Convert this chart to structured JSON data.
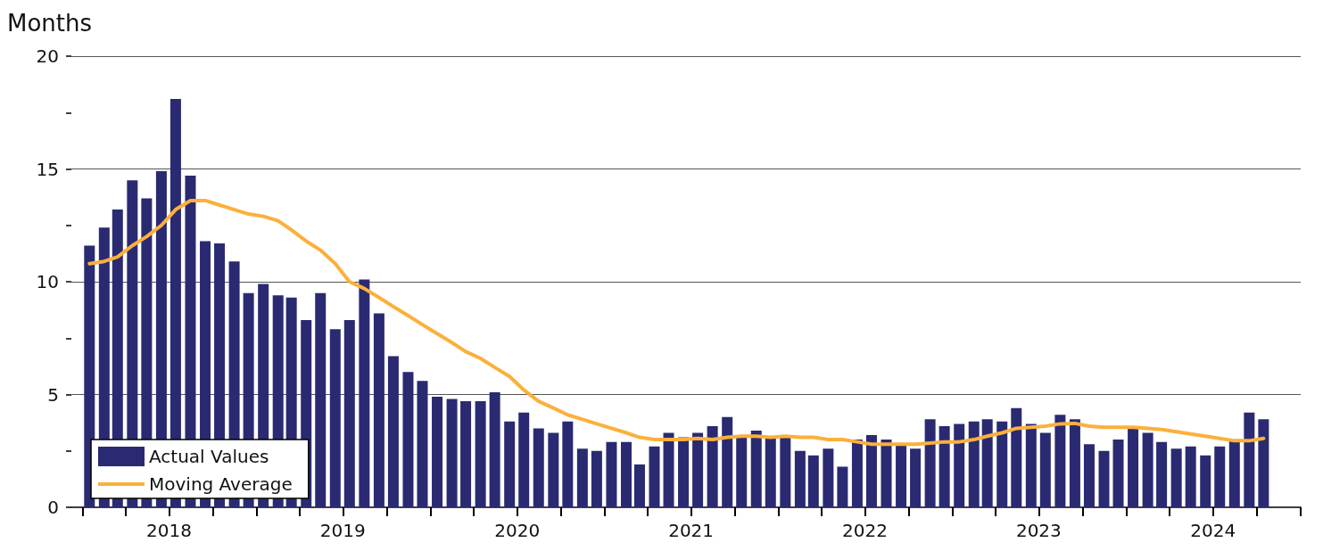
{
  "chart_data": {
    "type": "bar",
    "ylabel": "Months",
    "legend": "bottom left",
    "grid": "y",
    "marker": "none",
    "x": [
      "2018-01-15",
      "2018-02-15",
      "2018-03-15",
      "2018-04-15",
      "2018-05-15",
      "2018-06-15",
      "2018-07-15",
      "2018-08-15",
      "2018-09-15",
      "2018-10-15",
      "2018-11-15",
      "2018-12-15",
      "2019-01-15",
      "2019-02-15",
      "2019-03-15",
      "2019-04-15",
      "2019-05-15",
      "2019-06-15",
      "2019-07-15",
      "2019-08-15",
      "2019-09-15",
      "2019-10-15",
      "2019-11-15",
      "2019-12-15",
      "2020-01-15",
      "2020-02-15",
      "2020-03-15",
      "2020-04-15",
      "2020-05-15",
      "2020-06-15",
      "2020-07-15",
      "2020-08-15",
      "2020-09-15",
      "2020-10-15",
      "2020-11-15",
      "2020-12-15",
      "2021-01-15",
      "2021-02-15",
      "2021-03-15",
      "2021-04-15",
      "2021-05-15",
      "2021-06-15",
      "2021-07-15",
      "2021-08-15",
      "2021-09-15",
      "2021-10-15",
      "2021-11-15",
      "2021-12-15",
      "2022-01-15",
      "2022-02-15",
      "2022-03-15",
      "2022-04-15",
      "2022-05-15",
      "2022-06-15",
      "2022-07-15",
      "2022-08-15",
      "2022-09-15",
      "2022-10-15",
      "2022-11-15",
      "2022-12-15",
      "2023-01-15",
      "2023-02-15",
      "2023-03-15",
      "2023-04-15",
      "2023-05-15",
      "2023-06-15",
      "2023-07-15",
      "2023-08-15",
      "2023-09-15",
      "2023-10-15",
      "2023-11-15",
      "2023-12-15",
      "2024-01-15",
      "2024-02-15",
      "2024-03-15",
      "2024-04-15",
      "2024-05-15",
      "2024-06-15",
      "2024-07-15",
      "2024-08-15",
      "2024-09-15",
      "2024-10-15"
    ],
    "series": [
      {
        "name": "Actual Values",
        "color": "#2a2a72",
        "values": [
          11.6,
          12.4,
          13.2,
          14.5,
          13.7,
          14.9,
          18.1,
          14.7,
          11.8,
          11.7,
          10.9,
          9.5,
          9.9,
          9.4,
          9.3,
          8.3,
          9.5,
          7.9,
          8.3,
          10.1,
          8.6,
          6.7,
          6.0,
          5.6,
          4.9,
          4.8,
          4.7,
          4.7,
          5.1,
          3.8,
          4.2,
          3.5,
          3.3,
          3.8,
          2.6,
          2.5,
          2.9,
          2.9,
          1.9,
          2.7,
          3.3,
          3.1,
          3.3,
          3.6,
          4.0,
          3.1,
          3.4,
          3.1,
          3.1,
          2.5,
          2.3,
          2.6,
          1.8,
          3.0,
          3.2,
          3.0,
          2.8,
          2.6,
          3.9,
          3.6,
          3.7,
          3.8,
          3.9,
          3.8,
          4.4,
          3.7,
          3.3,
          4.1,
          3.9,
          2.8,
          2.5,
          3.0,
          3.5,
          3.3,
          2.9,
          2.6,
          2.7,
          2.3,
          2.7,
          3.0,
          4.2,
          3.9
        ]
      },
      {
        "name": "Moving Average",
        "type": "line",
        "color": "#fbb03b",
        "line_style": "solid",
        "values": [
          10.8,
          10.9,
          11.1,
          11.6,
          12.0,
          12.5,
          13.2,
          13.6,
          13.6,
          13.4,
          13.2,
          13.0,
          12.9,
          12.7,
          12.3,
          11.8,
          11.4,
          10.8,
          10.0,
          9.7,
          9.3,
          8.9,
          8.5,
          8.1,
          7.7,
          7.3,
          6.9,
          6.6,
          6.2,
          5.8,
          5.2,
          4.7,
          4.4,
          4.1,
          3.9,
          3.7,
          3.5,
          3.3,
          3.1,
          3.0,
          3.0,
          3.0,
          3.05,
          3.0,
          3.1,
          3.15,
          3.15,
          3.1,
          3.15,
          3.1,
          3.1,
          3.0,
          3.0,
          2.9,
          2.8,
          2.8,
          2.8,
          2.8,
          2.85,
          2.9,
          2.9,
          3.0,
          3.15,
          3.3,
          3.5,
          3.55,
          3.6,
          3.7,
          3.72,
          3.6,
          3.55,
          3.55,
          3.55,
          3.5,
          3.45,
          3.35,
          3.25,
          3.15,
          3.05,
          2.95,
          2.95,
          3.05
        ]
      }
    ],
    "xlim": [
      "2017-12-08",
      "2025-01-01"
    ],
    "xticks": [
      {
        "value": "2018-01-01",
        "label": null
      },
      {
        "value": "2018-04-01",
        "label": null
      },
      {
        "value": "2018-07-01",
        "label": "2018"
      },
      {
        "value": "2018-10-01",
        "label": null
      },
      {
        "value": "2019-01-01",
        "label": null
      },
      {
        "value": "2019-04-01",
        "label": null
      },
      {
        "value": "2019-07-01",
        "label": "2019"
      },
      {
        "value": "2019-10-01",
        "label": null
      },
      {
        "value": "2020-01-01",
        "label": null
      },
      {
        "value": "2020-04-01",
        "label": null
      },
      {
        "value": "2020-07-01",
        "label": "2020"
      },
      {
        "value": "2020-10-01",
        "label": null
      },
      {
        "value": "2021-01-01",
        "label": null
      },
      {
        "value": "2021-04-01",
        "label": null
      },
      {
        "value": "2021-07-01",
        "label": "2021"
      },
      {
        "value": "2021-10-01",
        "label": null
      },
      {
        "value": "2022-01-01",
        "label": null
      },
      {
        "value": "2022-04-01",
        "label": null
      },
      {
        "value": "2022-07-01",
        "label": "2022"
      },
      {
        "value": "2022-10-01",
        "label": null
      },
      {
        "value": "2023-01-01",
        "label": null
      },
      {
        "value": "2023-04-01",
        "label": null
      },
      {
        "value": "2023-07-01",
        "label": "2023"
      },
      {
        "value": "2023-10-01",
        "label": null
      },
      {
        "value": "2024-01-01",
        "label": null
      },
      {
        "value": "2024-04-01",
        "label": null
      },
      {
        "value": "2024-07-01",
        "label": "2024"
      },
      {
        "value": "2024-10-01",
        "label": null
      },
      {
        "value": "2025-01-01",
        "label": null
      }
    ],
    "ylim": [
      0,
      20
    ],
    "yticks": [
      0,
      {
        "value": 2.5,
        "label": null
      },
      5,
      {
        "value": 7.5,
        "label": null
      },
      10,
      {
        "value": 12.5,
        "label": null
      },
      15,
      {
        "value": 17.5,
        "label": null
      },
      20
    ]
  }
}
